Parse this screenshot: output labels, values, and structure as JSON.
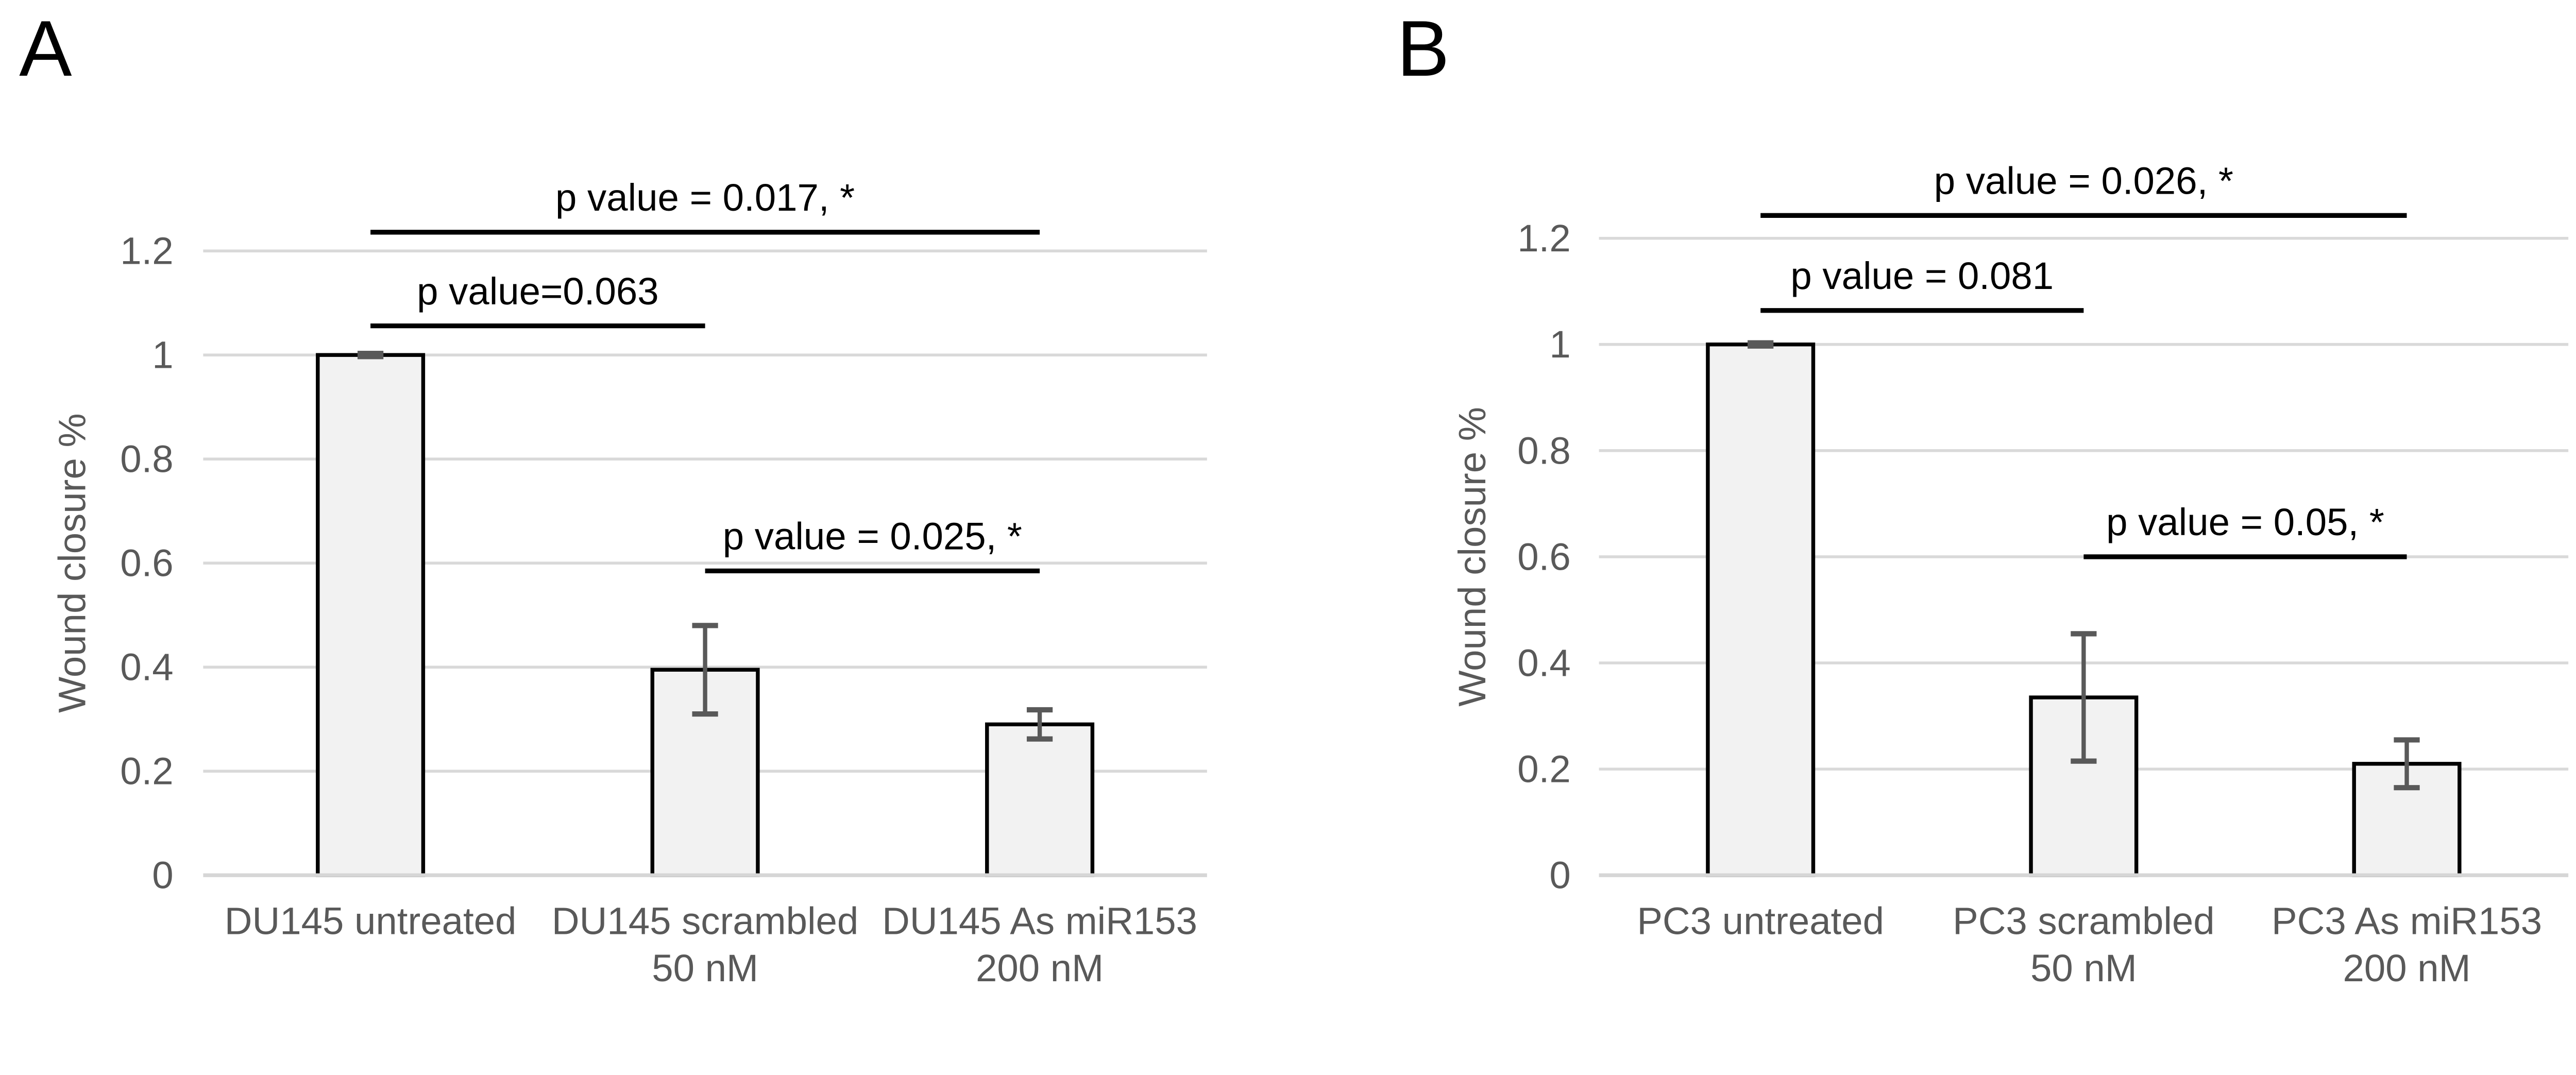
{
  "figure": {
    "background": "#ffffff",
    "description": "Two-panel bar figure of wound closure assays"
  },
  "styles": {
    "bar_fill": "#f2f2f2",
    "bar_stroke": "#000000",
    "grid_color": "#d9d9d9",
    "axis_line_color": "#d6d6d6",
    "error_bar_color": "#595959",
    "axis_text_color": "#595959",
    "annotation_color": "#000000",
    "panel_label_color": "#000000"
  },
  "chart_data": [
    {
      "type": "bar",
      "panel_label": "A",
      "title": "",
      "xlabel": "",
      "ylabel": "Wound closure %",
      "categories": [
        "DU145 untreated",
        "DU145 scrambled 50 nM",
        "DU145 As miR153 200 nM"
      ],
      "category_lines": [
        [
          "DU145 untreated"
        ],
        [
          "DU145 scrambled",
          "50 nM"
        ],
        [
          "DU145 As miR153",
          "200 nM"
        ]
      ],
      "values": [
        1.0,
        0.395,
        0.29
      ],
      "error_bars": [
        0.003,
        0.085,
        0.028
      ],
      "y_ticks": [
        0,
        0.2,
        0.4,
        0.6,
        0.8,
        1,
        1.2
      ],
      "y_tick_labels": [
        "0",
        "0.2",
        "0.4",
        "0.6",
        "0.8",
        "1",
        "1.2"
      ],
      "ylim": [
        0,
        1.3
      ],
      "grid": true,
      "legend": false,
      "significance": [
        {
          "label": "p value = 0.017, *",
          "from": 0,
          "to": 2,
          "line_y": 1.236
        },
        {
          "label": "p value=0.063",
          "from": 0,
          "to": 1,
          "line_y": 1.056
        },
        {
          "label": "p value = 0.025, *",
          "from": 1,
          "to": 2,
          "line_y": 0.585
        }
      ]
    },
    {
      "type": "bar",
      "panel_label": "B",
      "title": "",
      "xlabel": "",
      "ylabel": "Wound closure %",
      "categories": [
        "PC3 untreated",
        "PC3 scrambled 50 nM",
        "PC3 As miR153 200 nM"
      ],
      "category_lines": [
        [
          "PC3 untreated"
        ],
        [
          "PC3 scrambled",
          "50 nM"
        ],
        [
          "PC3 As miR153",
          "200 nM"
        ]
      ],
      "values": [
        1.0,
        0.335,
        0.21
      ],
      "error_bars": [
        0.003,
        0.12,
        0.045
      ],
      "y_ticks": [
        0,
        0.2,
        0.4,
        0.6,
        0.8,
        1,
        1.2
      ],
      "y_tick_labels": [
        "0",
        "0.2",
        "0.4",
        "0.6",
        "0.8",
        "1",
        "1.2"
      ],
      "ylim": [
        0,
        1.3
      ],
      "grid": true,
      "legend": false,
      "significance": [
        {
          "label": "p value = 0.026, *",
          "from": 0,
          "to": 2,
          "line_y": 1.243
        },
        {
          "label": "p value = 0.081",
          "from": 0,
          "to": 1,
          "line_y": 1.064
        },
        {
          "label": "p value = 0.05, *",
          "from": 1,
          "to": 2,
          "line_y": 0.6
        }
      ]
    }
  ]
}
